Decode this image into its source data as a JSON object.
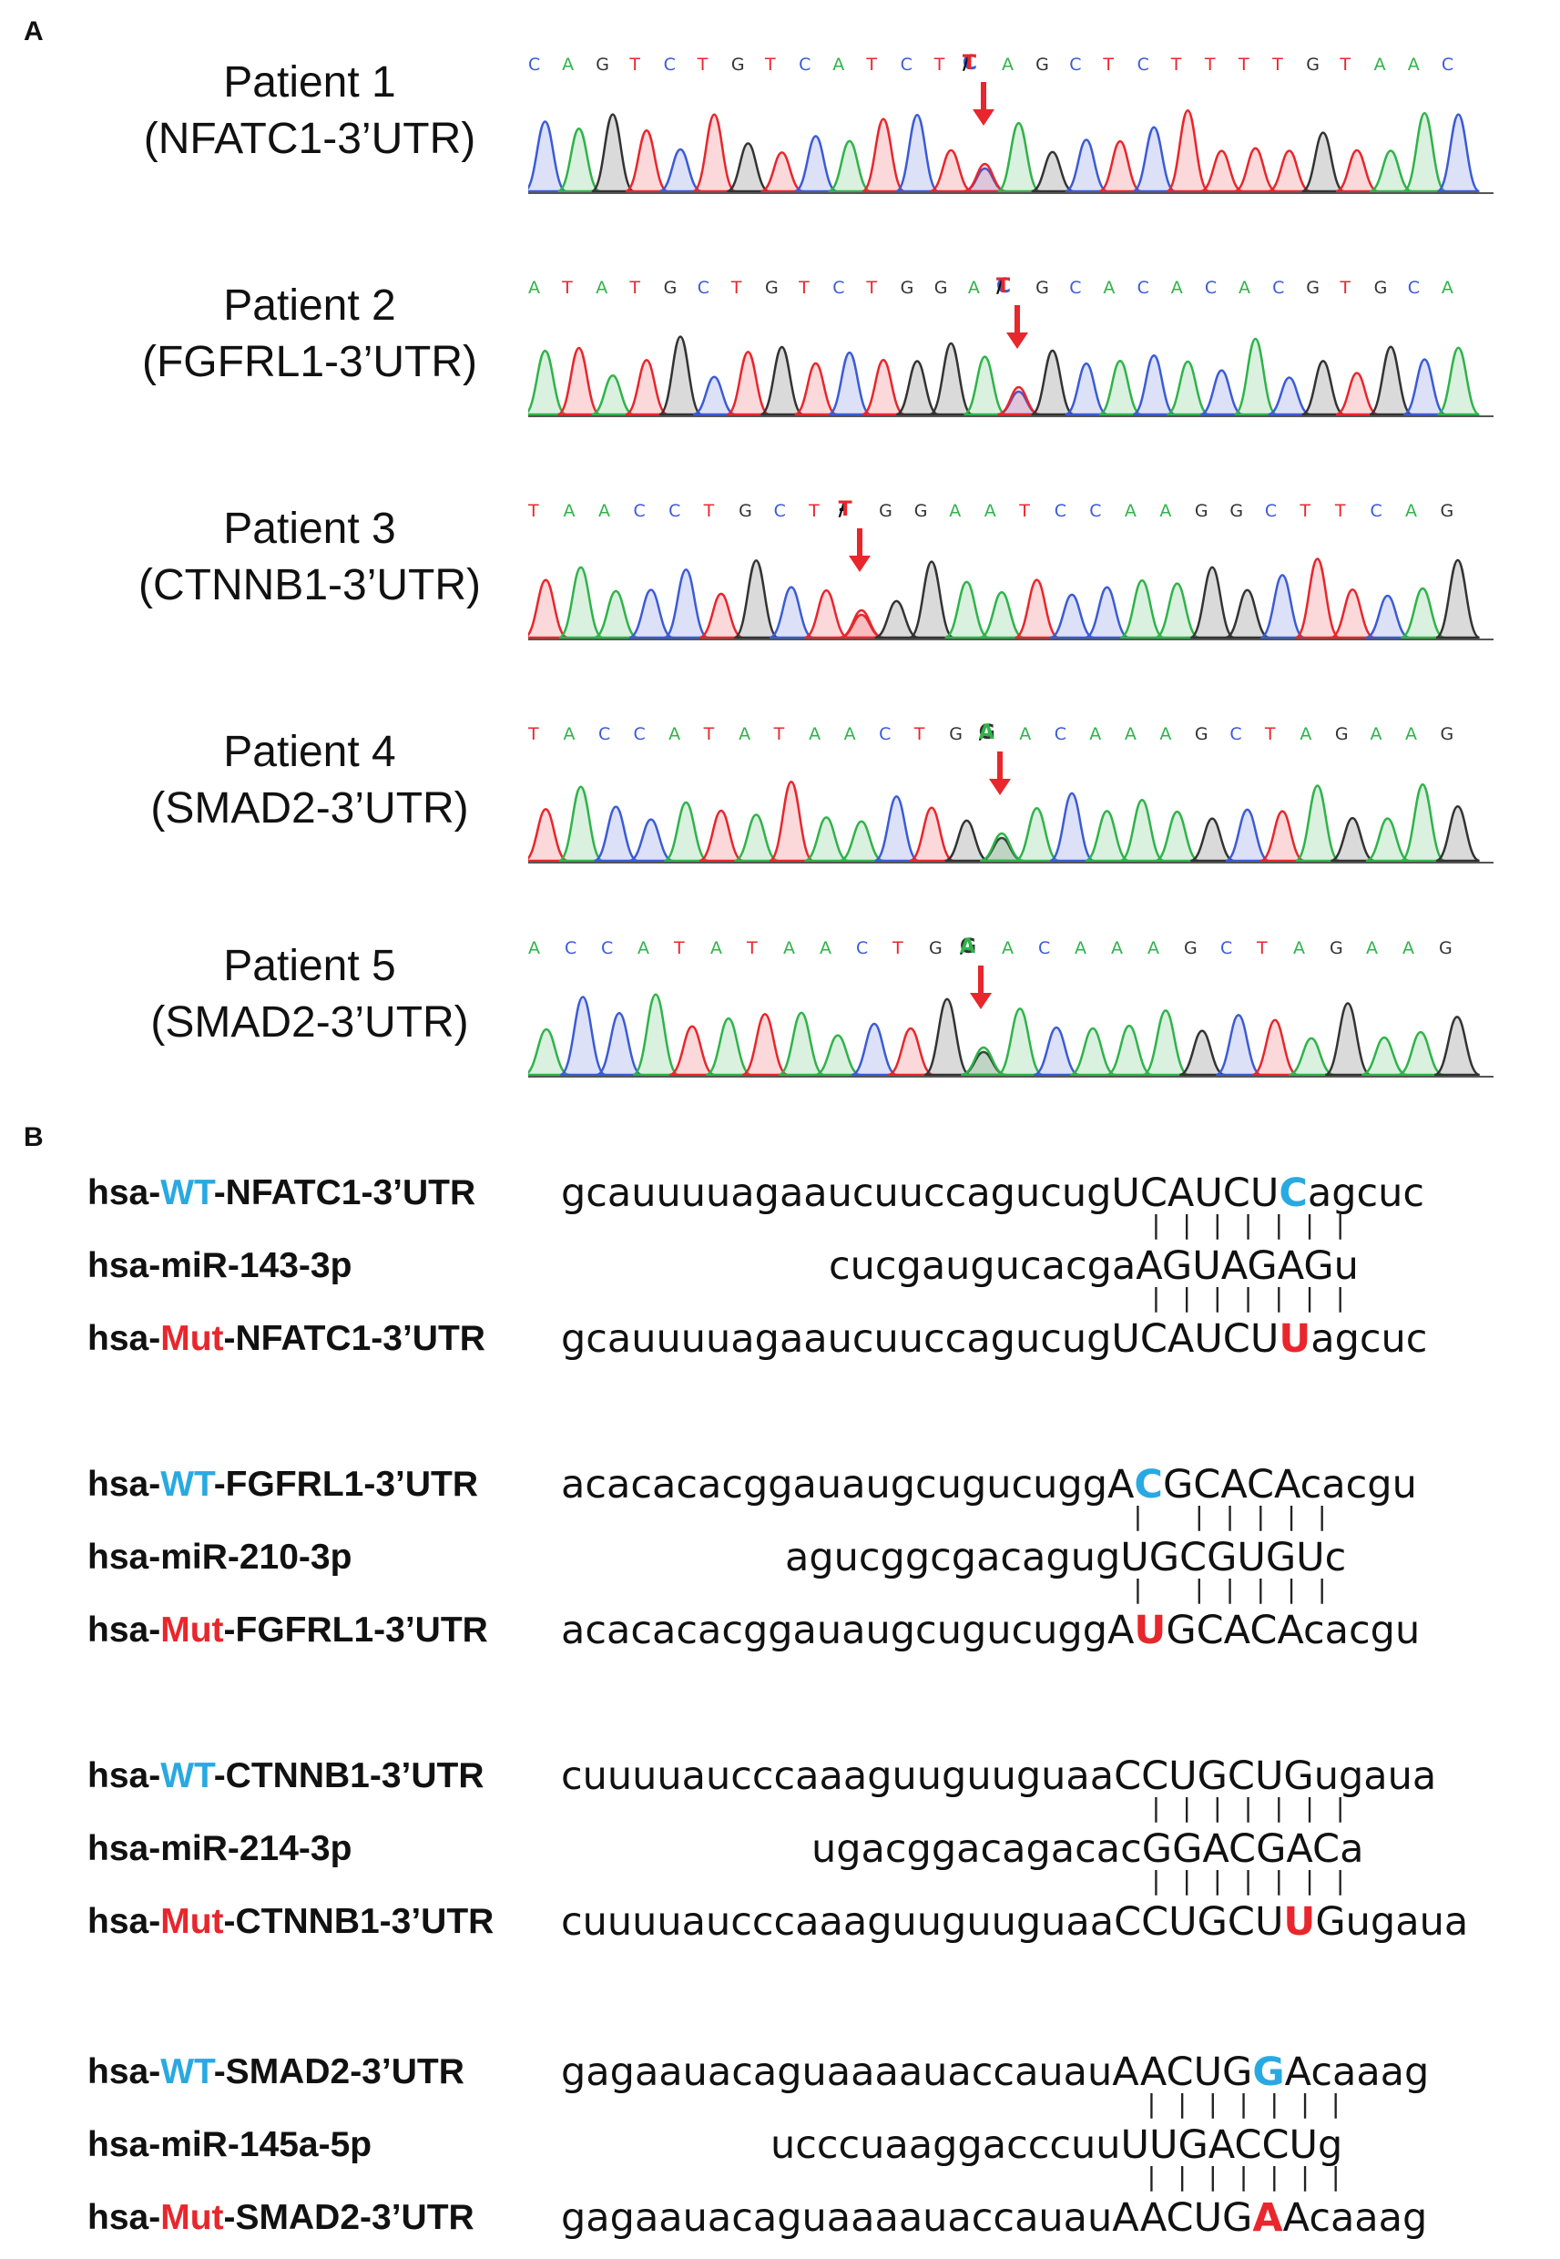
{
  "panel_a": {
    "letter": "A",
    "traces": [
      {
        "title_line1": "Patient 1",
        "title_line2": "(NFATC1-3’UTR)",
        "seq": "CAGTCTGTCATCT C/T AGCTCTTTTGTAAC",
        "pre": "CAGTCTGTCATCT",
        "variant_ref": "C",
        "variant_alt": "T",
        "post": "AGCTCTTTTGTAAC"
      },
      {
        "title_line1": "Patient 2",
        "title_line2": "(FGFRL1-3’UTR)",
        "seq": "ATATGCTGTCTGGA C/T GCACACACGTGCA",
        "pre": "ATATGCTGTCTGGA",
        "variant_ref": "C",
        "variant_alt": "T",
        "post": "GCACACACGTGCA"
      },
      {
        "title_line1": "Patient 3",
        "title_line2": "(CTNNB1-3’UTR)",
        "seq": "TAACCTGCT -/T GGAATCCAAGGCTTCAG",
        "pre": "TAACCTGCT",
        "variant_ref": "-",
        "variant_alt": "T",
        "post": "GGAATCCAAGGCTTCAG"
      },
      {
        "title_line1": "Patient 4",
        "title_line2": "(SMAD2-3’UTR)",
        "seq": "TACCATATAACTG G/A ACAAAGCTAGAAG",
        "pre": "TACCATATAACTG",
        "variant_ref": "G",
        "variant_alt": "A",
        "post": "ACAAAGCTAGAAG"
      },
      {
        "title_line1": "Patient 5",
        "title_line2": "(SMAD2-3’UTR)",
        "seq": "ACCATATAACTG G/A ACAAAGCTAGAAG",
        "pre": "ACCATATAACTG",
        "variant_ref": "G",
        "variant_alt": "A",
        "post": "ACAAAGCTAGAAG"
      }
    ],
    "base_colors": {
      "A": "#2fb34a",
      "C": "#3b5bd6",
      "G": "#333333",
      "T": "#e8262c"
    },
    "arrow_color": "#e8262c"
  },
  "panel_b": {
    "letter": "B",
    "groups": [
      {
        "wt_prefix": "hsa-",
        "wt_tag": "WT",
        "wt_suffix": "-NFATC1-3’UTR",
        "wt_seq_pre": "gcauuuuagaaucuuccagucugUCAUCU",
        "wt_var": "C",
        "wt_seq_post": "agcuc",
        "mir_name": "hsa-miR-143-3p",
        "mir_seq": "cucgaugucacgaAGUAGAGu",
        "mut_prefix": "hsa-",
        "mut_tag": "Mut",
        "mut_suffix": "-NFATC1-3’UTR",
        "mut_seq_pre": "gcauuuuagaaucuuccagucugUCAUCU",
        "mut_var": "U",
        "mut_seq_post": "agcuc",
        "bars": "| | | | | | |"
      },
      {
        "wt_prefix": "hsa-",
        "wt_tag": "WT",
        "wt_suffix": "-FGFRL1-3’UTR",
        "wt_seq_pre": "acacacacggauaugcugucuggA",
        "wt_var": "C",
        "wt_seq_post": "GCACAcacgu",
        "mir_name": "hsa-miR-210-3p",
        "mir_seq": "agucggcgacagugUGCGUGUc",
        "mut_prefix": "hsa-",
        "mut_tag": "Mut",
        "mut_suffix": "-FGFRL1-3’UTR",
        "mut_seq_pre": "acacacacggauaugcugucuggA",
        "mut_var": "U",
        "mut_seq_post": "GCACAcacgu",
        "bars": "|   | | | | |"
      },
      {
        "wt_prefix": "hsa-",
        "wt_tag": "WT",
        "wt_suffix": "-CTNNB1-3’UTR",
        "wt_seq_pre": "cuuuuaucccaaaguuguuguaaCCUGCUGugaua",
        "wt_var": "",
        "wt_seq_post": "",
        "mir_name": "hsa-miR-214-3p",
        "mir_seq": "ugacggacagacacGGACGACa",
        "mut_prefix": "hsa-",
        "mut_tag": "Mut",
        "mut_suffix": "-CTNNB1-3’UTR",
        "mut_seq_pre": "cuuuuaucccaaaguuguuguaaCCUGCU",
        "mut_var": "U",
        "mut_seq_post": "Gugaua",
        "bars": "| | | | | | |"
      },
      {
        "wt_prefix": "hsa-",
        "wt_tag": "WT",
        "wt_suffix": "-SMAD2-3’UTR",
        "wt_seq_pre": "gagaauacaguaaaauaccauauAACUG",
        "wt_var": "G",
        "wt_seq_post": "Acaaag",
        "mir_name": "hsa-miR-145a-5p",
        "mir_seq": "ucccuaaggacccuuUUGACCUg",
        "mut_prefix": "hsa-",
        "mut_tag": "Mut",
        "mut_suffix": "-SMAD2-3’UTR",
        "mut_seq_pre": "gagaauacaguaaaauaccauauAACUG",
        "mut_var": "A",
        "mut_seq_post": "Acaaag",
        "bars": "| | | | | | |"
      }
    ]
  }
}
